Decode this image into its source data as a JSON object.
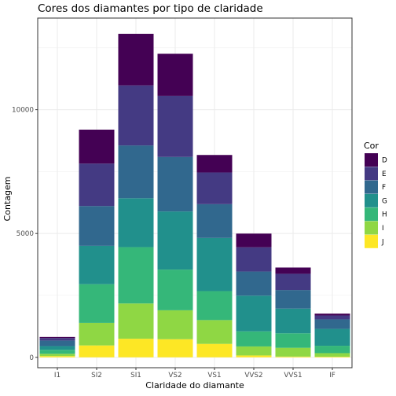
{
  "chart_data": {
    "type": "bar",
    "stacked": true,
    "title": "Cores dos diamantes por tipo de claridade",
    "xlabel": "Claridade do diamante",
    "ylabel": "Contagem",
    "categories": [
      "I1",
      "SI2",
      "SI1",
      "VS2",
      "VS1",
      "VVS2",
      "VVS1",
      "IF"
    ],
    "yticks": [
      0,
      5000,
      10000
    ],
    "ylim": [
      -420,
      13700
    ],
    "grid": true,
    "legend": {
      "title": "Cor",
      "placement": "right"
    },
    "series": [
      {
        "name": "J",
        "color": "#FDE725",
        "values": [
          50,
          479,
          750,
          731,
          542,
          74,
          29,
          25
        ]
      },
      {
        "name": "I",
        "color": "#8FD744",
        "values": [
          92,
          912,
          1424,
          1169,
          962,
          365,
          355,
          143
        ]
      },
      {
        "name": "H",
        "color": "#35B779",
        "values": [
          162,
          1563,
          2275,
          1643,
          1169,
          608,
          585,
          299
        ]
      },
      {
        "name": "G",
        "color": "#21908C",
        "values": [
          150,
          1548,
          1976,
          2347,
          2148,
          1443,
          999,
          681
        ]
      },
      {
        "name": "F",
        "color": "#31688E",
        "values": [
          224,
          1609,
          2131,
          2201,
          1364,
          975,
          750,
          385
        ]
      },
      {
        "name": "E",
        "color": "#443A83",
        "values": [
          102,
          1713,
          2426,
          2470,
          1281,
          978,
          656,
          158
        ]
      },
      {
        "name": "D",
        "color": "#440154",
        "values": [
          42,
          1370,
          2083,
          1697,
          705,
          553,
          252,
          73
        ]
      }
    ]
  }
}
